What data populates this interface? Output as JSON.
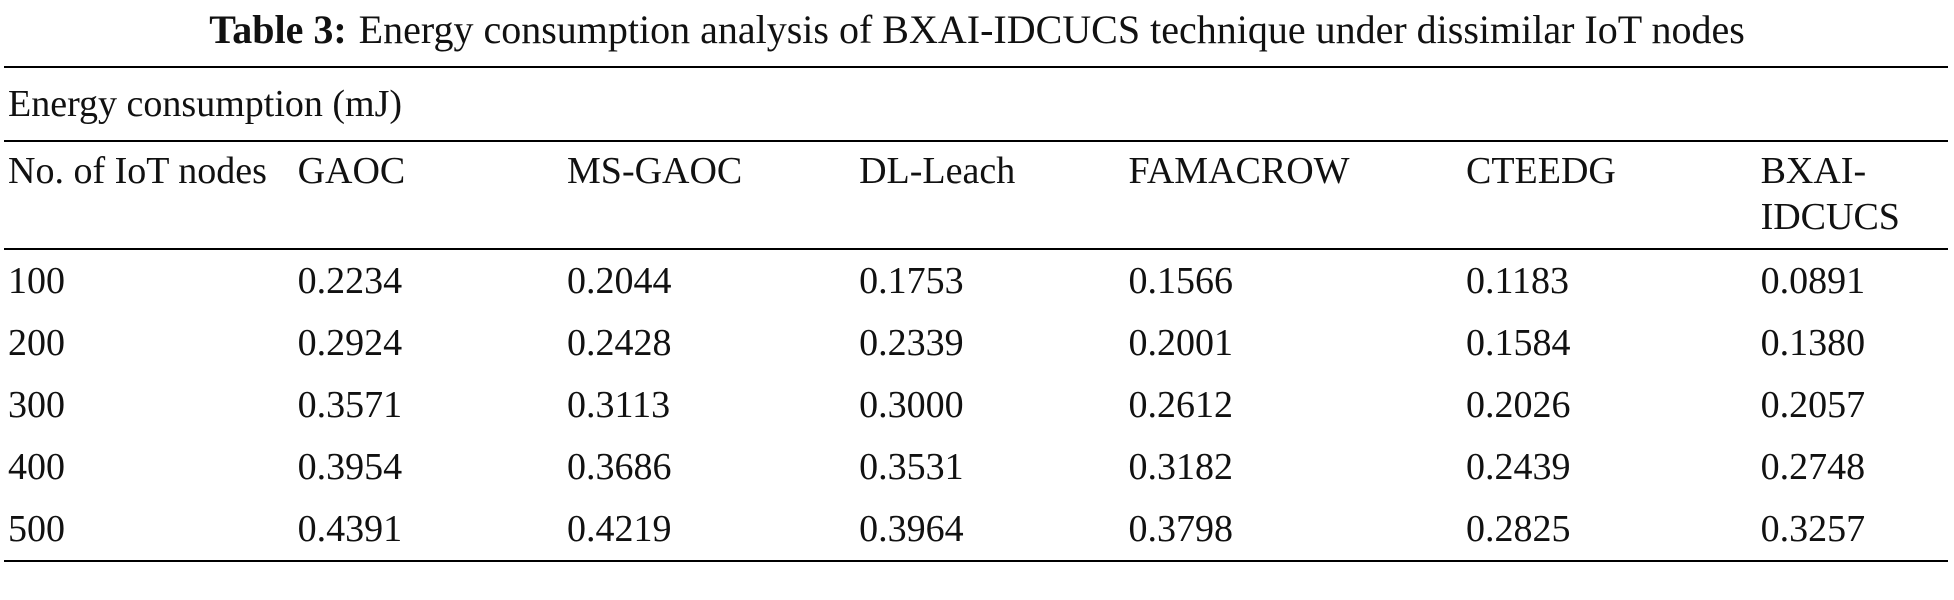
{
  "caption": {
    "label": "Table 3:",
    "text": "Energy consumption analysis of BXAI-IDCUCS technique under dissimilar IoT nodes"
  },
  "group_header": "Energy consumption (mJ)",
  "chart_data": {
    "type": "table",
    "columns": [
      "No. of IoT nodes",
      "GAOC",
      "MS-GAOC",
      "DL-Leach",
      "FAMACROW",
      "CTEEDG",
      "BXAI-IDCUCS"
    ],
    "rows": [
      [
        "100",
        "0.2234",
        "0.2044",
        "0.1753",
        "0.1566",
        "0.1183",
        "0.0891"
      ],
      [
        "200",
        "0.2924",
        "0.2428",
        "0.2339",
        "0.2001",
        "0.1584",
        "0.1380"
      ],
      [
        "300",
        "0.3571",
        "0.3113",
        "0.3000",
        "0.2612",
        "0.2026",
        "0.2057"
      ],
      [
        "400",
        "0.3954",
        "0.3686",
        "0.3531",
        "0.3182",
        "0.2439",
        "0.2748"
      ],
      [
        "500",
        "0.4391",
        "0.4219",
        "0.3964",
        "0.3798",
        "0.2825",
        "0.3257"
      ]
    ]
  }
}
